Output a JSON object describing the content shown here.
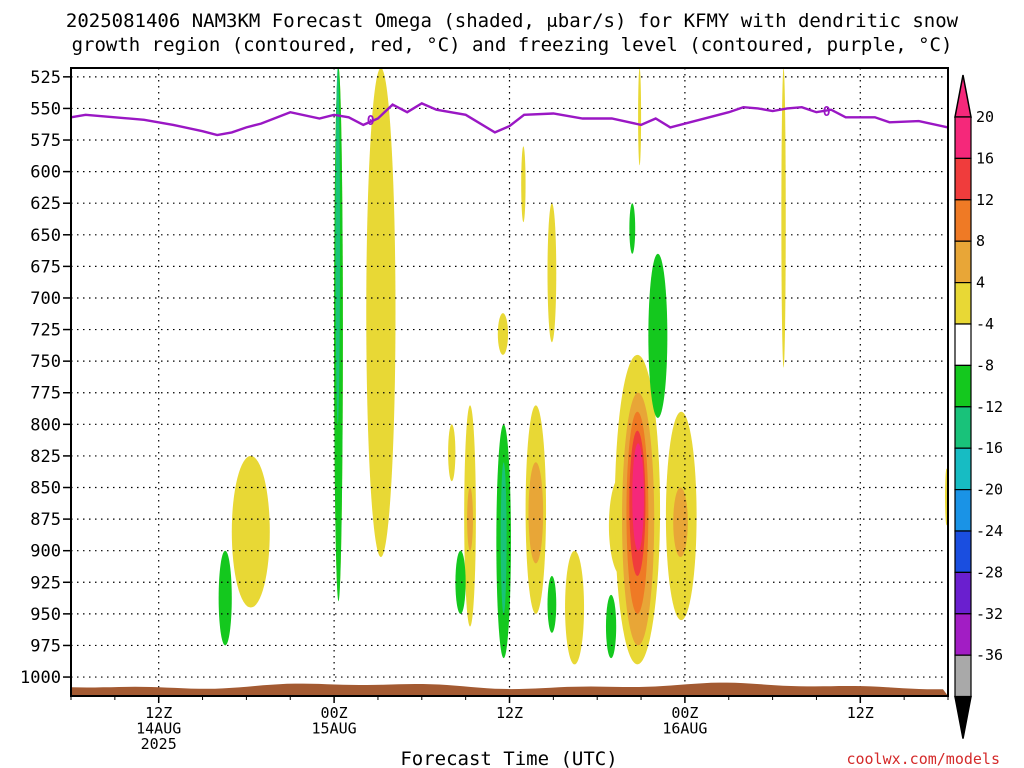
{
  "title_lines": [
    "2025081406 NAM3KM Forecast Omega (shaded, μbar/s) for KFMY with dendritic snow",
    "growth region (contoured, red, °C) and freezing level (contoured, purple, °C)"
  ],
  "credit": "coolwx.com/models",
  "chart_data": {
    "type": "heatmap",
    "xlabel": "Forecast Time (UTC)",
    "x_unit": "hours from 2025-08-14 00Z",
    "xlim": [
      6,
      66
    ],
    "x_ticks": [
      {
        "hour": 12,
        "lines": [
          "12Z",
          "14AUG",
          "2025"
        ]
      },
      {
        "hour": 24,
        "lines": [
          "00Z",
          "15AUG"
        ]
      },
      {
        "hour": 36,
        "lines": [
          "12Z"
        ]
      },
      {
        "hour": 48,
        "lines": [
          "00Z",
          "16AUG"
        ]
      },
      {
        "hour": 60,
        "lines": [
          "12Z"
        ]
      }
    ],
    "y_unit": "hPa",
    "ylim": [
      1015,
      518
    ],
    "y_levels": [
      525,
      550,
      575,
      600,
      625,
      650,
      675,
      700,
      725,
      750,
      775,
      800,
      825,
      850,
      875,
      900,
      925,
      950,
      975,
      1000
    ],
    "grid": "dotted",
    "colorbar": {
      "position": "right",
      "labels": [
        20,
        16,
        12,
        8,
        4,
        -4,
        -8,
        -12,
        -16,
        -20,
        -24,
        -28,
        -32,
        -36
      ],
      "colors": [
        "#f5287a",
        "#f03c3c",
        "#ef7a25",
        "#e8a637",
        "#e8d835",
        "#ffffff",
        "#14c81e",
        "#19c27a",
        "#17bcc3",
        "#1a93e6",
        "#1a4ee0",
        "#6a1fcf",
        "#a21dc4",
        "#a9a9a9"
      ]
    },
    "freezing_level": {
      "label": "0",
      "color": "#9a17c4",
      "points": [
        [
          6,
          557
        ],
        [
          7,
          555
        ],
        [
          9,
          557
        ],
        [
          11,
          559
        ],
        [
          13,
          563
        ],
        [
          15,
          568
        ],
        [
          16,
          571
        ],
        [
          17,
          569
        ],
        [
          18,
          565
        ],
        [
          19,
          562
        ],
        [
          21,
          553
        ],
        [
          23,
          558
        ],
        [
          24,
          555
        ],
        [
          25,
          557
        ],
        [
          26,
          563
        ],
        [
          27,
          558
        ],
        [
          28,
          547
        ],
        [
          29,
          553
        ],
        [
          30,
          546
        ],
        [
          31,
          551
        ],
        [
          33,
          555
        ],
        [
          35,
          569
        ],
        [
          36,
          564
        ],
        [
          37,
          555
        ],
        [
          39,
          554
        ],
        [
          41,
          558
        ],
        [
          43,
          558
        ],
        [
          45,
          563
        ],
        [
          46,
          558
        ],
        [
          47,
          565
        ],
        [
          49,
          559
        ],
        [
          51,
          553
        ],
        [
          52,
          549
        ],
        [
          53,
          550
        ],
        [
          54,
          552
        ],
        [
          55,
          550
        ],
        [
          56,
          549
        ],
        [
          57,
          553
        ],
        [
          58,
          551
        ],
        [
          59,
          557
        ],
        [
          61,
          557
        ],
        [
          62,
          561
        ],
        [
          64,
          560
        ],
        [
          66,
          565
        ]
      ]
    },
    "omega_features": [
      {
        "cls": 1,
        "t0": 24,
        "t1": 24.6,
        "p0": 518,
        "p1": 938
      },
      {
        "cls": -8,
        "t0": 24,
        "t1": 24.6,
        "p0": 518,
        "p1": 940
      },
      {
        "cls": -12,
        "t0": 24.1,
        "t1": 24.4,
        "p0": 518,
        "p1": 800
      },
      {
        "cls": 1,
        "t0": 26.2,
        "t1": 28.2,
        "p0": 518,
        "p1": 905
      },
      {
        "cls": 1,
        "t0": 17,
        "t1": 19.6,
        "p0": 825,
        "p1": 945
      },
      {
        "cls": -8,
        "t0": 16.1,
        "t1": 17,
        "p0": 900,
        "p1": 975
      },
      {
        "cls": 1,
        "t0": 31.8,
        "t1": 32.3,
        "p0": 800,
        "p1": 845
      },
      {
        "cls": 1,
        "t0": 32.9,
        "t1": 33.7,
        "p0": 785,
        "p1": 960
      },
      {
        "cls": 2,
        "t0": 33.1,
        "t1": 33.5,
        "p0": 850,
        "p1": 900
      },
      {
        "cls": -8,
        "t0": 32.3,
        "t1": 33,
        "p0": 900,
        "p1": 950
      },
      {
        "cls": -8,
        "t0": 35.1,
        "t1": 36.1,
        "p0": 800,
        "p1": 985
      },
      {
        "cls": -12,
        "t0": 35.4,
        "t1": 35.8,
        "p0": 830,
        "p1": 950
      },
      {
        "cls": 1,
        "t0": 35.2,
        "t1": 35.9,
        "p0": 712,
        "p1": 745
      },
      {
        "cls": 1,
        "t0": 36.8,
        "t1": 37.1,
        "p0": 580,
        "p1": 640
      },
      {
        "cls": 1,
        "t0": 37.1,
        "t1": 38.5,
        "p0": 785,
        "p1": 950
      },
      {
        "cls": 2,
        "t0": 37.3,
        "t1": 38.3,
        "p0": 830,
        "p1": 910
      },
      {
        "cls": 1,
        "t0": 38.6,
        "t1": 39.2,
        "p0": 625,
        "p1": 735
      },
      {
        "cls": -8,
        "t0": 38.6,
        "t1": 39.2,
        "p0": 920,
        "p1": 965
      },
      {
        "cls": 1,
        "t0": 39.8,
        "t1": 41.1,
        "p0": 900,
        "p1": 990
      },
      {
        "cls": 1,
        "t0": 42.8,
        "t1": 44.6,
        "p0": 840,
        "p1": 920
      },
      {
        "cls": -8,
        "t0": 42.6,
        "t1": 43.3,
        "p0": 935,
        "p1": 985
      },
      {
        "cls": 1,
        "t0": 43.2,
        "t1": 46.3,
        "p0": 745,
        "p1": 990
      },
      {
        "cls": 2,
        "t0": 43.7,
        "t1": 45.9,
        "p0": 775,
        "p1": 975
      },
      {
        "cls": 3,
        "t0": 44,
        "t1": 45.5,
        "p0": 790,
        "p1": 950
      },
      {
        "cls": 4,
        "t0": 44.2,
        "t1": 45.3,
        "p0": 805,
        "p1": 920
      },
      {
        "cls": 5,
        "t0": 44.4,
        "t1": 45.2,
        "p0": 815,
        "p1": 900
      },
      {
        "cls": -8,
        "t0": 44.2,
        "t1": 44.6,
        "p0": 625,
        "p1": 665
      },
      {
        "cls": 1,
        "t0": 44.8,
        "t1": 45,
        "p0": 518,
        "p1": 595
      },
      {
        "cls": -8,
        "t0": 45.5,
        "t1": 46.8,
        "p0": 665,
        "p1": 795
      },
      {
        "cls": 1,
        "t0": 46.7,
        "t1": 48.8,
        "p0": 790,
        "p1": 955
      },
      {
        "cls": 2,
        "t0": 47.2,
        "t1": 48.2,
        "p0": 850,
        "p1": 905
      },
      {
        "cls": 1,
        "t0": 54.6,
        "t1": 54.9,
        "p0": 518,
        "p1": 755
      },
      {
        "cls": 1,
        "t0": 65.8,
        "t1": 66,
        "p0": 835,
        "p1": 880
      }
    ]
  }
}
